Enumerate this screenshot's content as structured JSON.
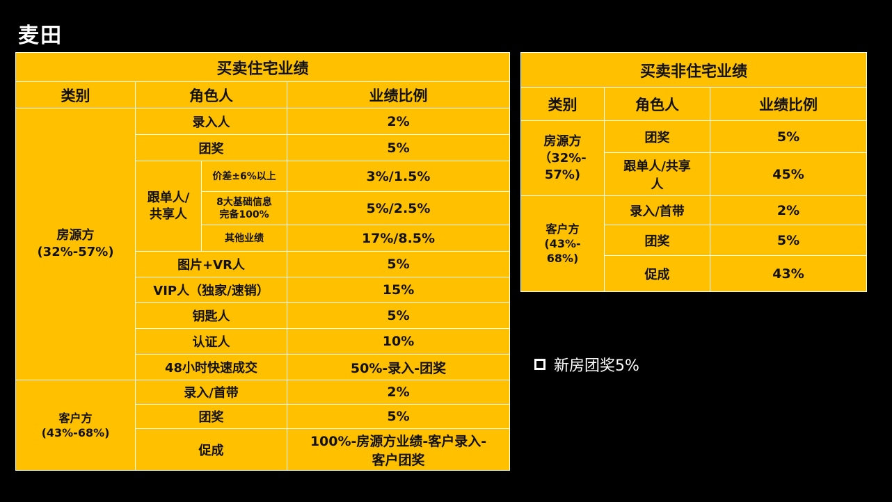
{
  "logo": "麦田",
  "residential": {
    "title": "买卖住宅业绩",
    "headers": {
      "category": "类别",
      "role": "角色人",
      "ratio": "业绩比例"
    },
    "owner": {
      "category_line1": "房源方",
      "category_line2": "(32%-57%)",
      "rows": [
        {
          "role": "录入人",
          "value": "2%"
        },
        {
          "role": "团奖",
          "value": "5%"
        }
      ],
      "follow_group": {
        "label_line1": "跟单人/",
        "label_line2": "共享人",
        "subrows": [
          {
            "sub": "价差±6%以上",
            "value": "3%/1.5%"
          },
          {
            "sub_line1": "8大基础信息",
            "sub_line2": "完备100%",
            "value": "5%/2.5%"
          },
          {
            "sub": "其他业绩",
            "value": "17%/8.5%"
          }
        ]
      },
      "rows2": [
        {
          "role": "图片+VR人",
          "value": "5%"
        },
        {
          "role": "VIP人（独家/速销）",
          "value": "15%"
        },
        {
          "role": "钥匙人",
          "value": "5%"
        },
        {
          "role": "认证人",
          "value": "10%"
        },
        {
          "role": "48小时快速成交",
          "value": "50%-录入-团奖"
        }
      ]
    },
    "client": {
      "category_line1": "客户方",
      "category_line2": "(43%-68%)",
      "rows": [
        {
          "role": "录入/首带",
          "value": "2%"
        },
        {
          "role": "团奖",
          "value": "5%"
        },
        {
          "role": "促成",
          "value_line1": "100%-房源方业绩-客户录入-",
          "value_line2": "客户团奖"
        }
      ]
    }
  },
  "nonresidential": {
    "title": "买卖非住宅业绩",
    "headers": {
      "category": "类别",
      "role": "角色人",
      "ratio": "业绩比例"
    },
    "owner": {
      "category_line1": "房源方",
      "category_line2": "（32%-",
      "category_line3": "57%)",
      "rows": [
        {
          "role": "团奖",
          "value": "5%"
        },
        {
          "role_line1": "跟单人/共享",
          "role_line2": "人",
          "value": "45%"
        }
      ]
    },
    "client": {
      "category_line1": "客户方",
      "category_line2": "(43%-",
      "category_line3": "68%)",
      "rows": [
        {
          "role": "录入/首带",
          "value": "2%"
        },
        {
          "role": "团奖",
          "value": "5%"
        },
        {
          "role": "促成",
          "value": "43%"
        }
      ]
    }
  },
  "note": {
    "text": "新房团奖5%"
  },
  "colors": {
    "table_bg": "#FFC000",
    "highlight": "#FF0000",
    "background": "#000000"
  }
}
